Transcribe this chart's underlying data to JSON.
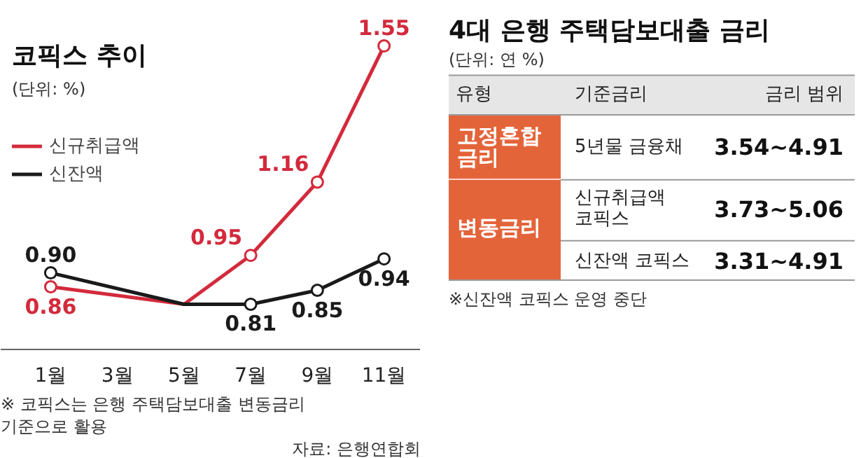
{
  "chart_data": [
    {
      "type": "line",
      "title": "코픽스 추이",
      "subtitle": "(단위: %)",
      "x": [
        1,
        5,
        7,
        9,
        11
      ],
      "xlim": [
        -0.5,
        12.1
      ],
      "xticks": [
        {
          "value": 1,
          "label": "1월"
        },
        {
          "value": 3,
          "label": "3월"
        },
        {
          "value": 5,
          "label": "5월"
        },
        {
          "value": 7,
          "label": "7월"
        },
        {
          "value": 9,
          "label": "9월"
        },
        {
          "value": 11,
          "label": "11월"
        }
      ],
      "tick_labels": "x",
      "series": [
        {
          "name": "신규취급액",
          "color": "#d32a3c",
          "values": [
            0.86,
            0.81,
            0.95,
            1.16,
            1.55
          ],
          "value_labels": [
            "0.86",
            null,
            "0.95",
            "1.16",
            "1.55"
          ]
        },
        {
          "name": "신잔액",
          "color": "#1a1a1a",
          "values": [
            0.9,
            0.81,
            0.81,
            0.85,
            0.94
          ],
          "value_labels": [
            "0.90",
            null,
            "0.81",
            "0.85",
            "0.94"
          ]
        }
      ],
      "legend": "top left",
      "grid": false,
      "marker": "circle",
      "line_style": "solid",
      "annotations": [
        "※ 코픽스는 은행 주택담보대출 변동금리 기준으로 활용",
        "자료: 은행연합회"
      ]
    },
    {
      "type": "other",
      "title": "4대 은행 주택담보대출 금리",
      "subtitle": "(단위: 연 %)",
      "annotations": [
        "유형",
        "기준금리",
        "금리 범위",
        "고정혼합 금리",
        "5년물 금융채",
        "3.54~4.91",
        "변동금리",
        "신규취급액 코픽스",
        "3.73~5.06",
        "신잔액 코픽스",
        "3.31~4.91",
        "※신잔액 코픽스 운영 중단"
      ]
    }
  ]
}
